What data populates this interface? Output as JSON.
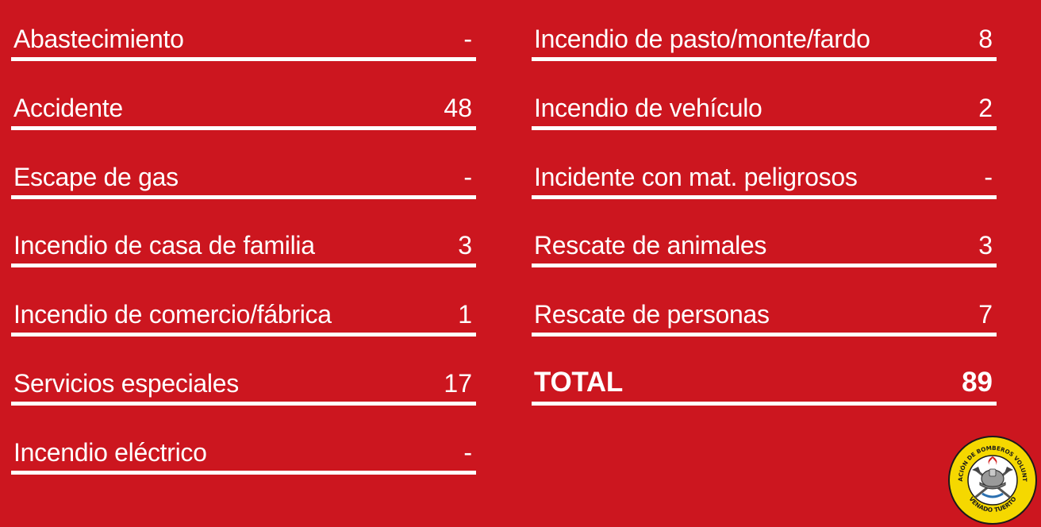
{
  "left_rows": [
    {
      "label": "Abastecimiento",
      "value": "-"
    },
    {
      "label": "Accidente",
      "value": "48"
    },
    {
      "label": "Escape de gas",
      "value": "-"
    },
    {
      "label": "Incendio de casa de familia",
      "value": "3"
    },
    {
      "label": "Incendio de comercio/fábrica",
      "value": "1"
    },
    {
      "label": "Servicios especiales",
      "value": "17"
    },
    {
      "label": "Incendio eléctrico",
      "value": "-"
    }
  ],
  "right_rows": [
    {
      "label": "Incendio de pasto/monte/fardo",
      "value": "8"
    },
    {
      "label": "Incendio de vehículo",
      "value": "2"
    },
    {
      "label": "Incidente con mat. peligrosos",
      "value": "-"
    },
    {
      "label": "Rescate de animales",
      "value": "3"
    },
    {
      "label": "Rescate de personas",
      "value": "7"
    }
  ],
  "total": {
    "label": "TOTAL",
    "value": "89"
  },
  "logo": {
    "top_text": "ASOCIACIÓN DE BOMBEROS VOLUNTARIOS",
    "bottom_text": "VENADO TUERTO",
    "icon": "firefighter-helmet-axes-icon"
  },
  "colors": {
    "background": "#cc161f",
    "text": "#ffffff",
    "logo_yellow": "#f5d800"
  }
}
